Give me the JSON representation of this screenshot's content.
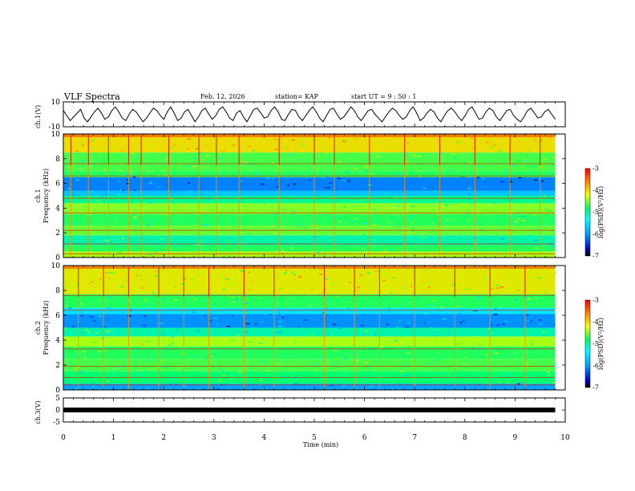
{
  "header": {
    "title": "VLF Spectra",
    "date": "Feb. 12, 2026",
    "station": "station= KAP",
    "start": "start  UT  =   9  : 50 : 1"
  },
  "chart_data": [
    {
      "id": "ch1-voltage",
      "type": "line",
      "ylabel": "ch.1(V)",
      "ylim": [
        -10,
        10
      ],
      "yticks": [
        "10",
        "-10"
      ],
      "xlim": [
        0,
        9.8
      ],
      "note": "waveform amplitude trace, approx. values sampled every ~0.07 min",
      "values": [
        3,
        -1,
        -5,
        -2,
        1,
        4,
        -3,
        -6,
        -2,
        2,
        5,
        1,
        -4,
        -2,
        3,
        6,
        2,
        -3,
        -5,
        0,
        4,
        2,
        -2,
        -6,
        -3,
        1,
        5,
        3,
        -1,
        -4,
        2,
        6,
        1,
        -5,
        -3,
        2,
        4,
        -1,
        -6,
        -2,
        3,
        5,
        0,
        -4,
        -1,
        4,
        6,
        2,
        -3,
        -5,
        1,
        3,
        -2,
        -6,
        -1,
        4,
        5,
        1,
        -3,
        -2,
        3,
        6,
        2,
        -4,
        -5,
        0,
        4,
        3,
        -2,
        -5,
        -1,
        3,
        6,
        2,
        -3,
        -6,
        -1,
        4,
        5,
        0,
        -4,
        -2,
        2,
        6,
        3,
        -2,
        -5,
        -1,
        3,
        4,
        0,
        -3,
        -6,
        -2,
        2,
        5,
        3,
        -1,
        -4,
        -2,
        3,
        6,
        1,
        -5,
        -3,
        1,
        4,
        2,
        -3,
        -6,
        -1,
        3,
        5,
        2,
        -2,
        -5,
        -1,
        4,
        6,
        1,
        -4,
        -3,
        2,
        5,
        3,
        -2,
        -5,
        -1,
        3,
        4,
        -1,
        -4,
        -6,
        -2,
        3,
        5,
        1,
        -3,
        -2,
        2,
        4,
        0,
        -4
      ]
    },
    {
      "id": "ch1-spectrogram",
      "type": "heatmap",
      "ylabel": "ch.1\nFrequency  (kHz)",
      "ylim": [
        0,
        10
      ],
      "yticks": [
        "0",
        "2",
        "4",
        "6",
        "8",
        "10"
      ],
      "xlim": [
        0,
        9.8
      ],
      "colorbar": {
        "label": "log(PSD)(V²/Hz)",
        "ticks": [
          "-3",
          "-4",
          "-5",
          "-6",
          "-7"
        ],
        "range": [
          -7,
          -3
        ]
      },
      "bands_khz_logpsd": [
        [
          0.0,
          0.5,
          -4.6
        ],
        [
          0.5,
          1.0,
          -5.0
        ],
        [
          1.0,
          1.8,
          -5.3
        ],
        [
          1.8,
          2.6,
          -4.8
        ],
        [
          2.6,
          3.5,
          -5.0
        ],
        [
          3.5,
          4.4,
          -4.7
        ],
        [
          4.4,
          5.0,
          -5.2
        ],
        [
          5.0,
          5.4,
          -5.8
        ],
        [
          5.4,
          6.5,
          -6.2
        ],
        [
          6.5,
          7.0,
          -5.0
        ],
        [
          7.0,
          8.5,
          -4.9
        ],
        [
          8.5,
          10.0,
          -4.2
        ]
      ],
      "lines_khz": [
        0.3,
        1.1,
        2.2,
        3.6,
        4.8,
        6.6,
        7.6
      ],
      "sferic_times_min": [
        0.15,
        0.5,
        0.9,
        1.3,
        1.55,
        2.1,
        2.7,
        3.05,
        3.5,
        4.3,
        5.0,
        5.4,
        6.1,
        6.8,
        7.5,
        8.2,
        8.9,
        9.5
      ]
    },
    {
      "id": "ch2-spectrogram",
      "type": "heatmap",
      "ylabel": "ch.2\nFrequency  (kHz)",
      "ylim": [
        0,
        10
      ],
      "yticks": [
        "0",
        "2",
        "4",
        "6",
        "8",
        "10"
      ],
      "xlim": [
        0,
        9.8
      ],
      "colorbar": {
        "label": "log(PSD)(V²/Hz)",
        "ticks": [
          "-3",
          "-4",
          "-5",
          "-6",
          "-7"
        ],
        "range": [
          -7,
          -3
        ]
      },
      "bands_khz_logpsd": [
        [
          0.0,
          0.5,
          -6.0
        ],
        [
          0.5,
          1.5,
          -5.1
        ],
        [
          1.5,
          2.5,
          -4.9
        ],
        [
          2.5,
          3.5,
          -5.0
        ],
        [
          3.5,
          4.3,
          -4.6
        ],
        [
          4.3,
          5.0,
          -5.3
        ],
        [
          5.0,
          6.1,
          -6.1
        ],
        [
          6.1,
          6.6,
          -5.6
        ],
        [
          6.6,
          7.7,
          -5.0
        ],
        [
          7.7,
          10.0,
          -4.3
        ]
      ],
      "lines_khz": [
        0.4,
        1.0,
        1.9,
        3.3,
        6.4,
        7.6
      ],
      "sferic_times_min": [
        0.3,
        0.8,
        1.3,
        1.9,
        2.4,
        2.9,
        3.6,
        4.2,
        5.2,
        5.8,
        6.3,
        7.0,
        7.8,
        8.5,
        9.2
      ]
    },
    {
      "id": "ch3-voltage",
      "type": "line",
      "ylabel": "ch.3(V)",
      "ylim": [
        -5,
        5
      ],
      "yticks": [
        "5",
        "0",
        "-5"
      ],
      "xlim": [
        0,
        9.8
      ],
      "constant_value": 0
    }
  ],
  "x_axis": {
    "label": "Time  (min)",
    "ticks": [
      "0",
      "1",
      "2",
      "3",
      "4",
      "5",
      "6",
      "7",
      "8",
      "9",
      "10"
    ],
    "range": [
      0,
      10
    ]
  }
}
